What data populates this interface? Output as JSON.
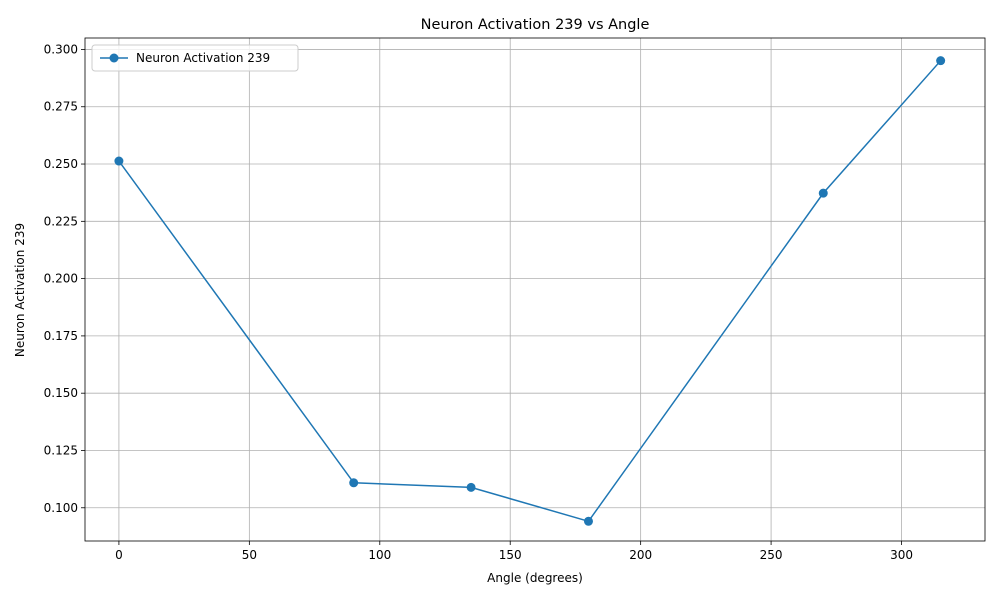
{
  "chart_data": {
    "type": "line",
    "title": "Neuron Activation 239 vs Angle",
    "xlabel": "Angle (degrees)",
    "ylabel": "Neuron Activation 239",
    "xlim": [
      -13,
      332
    ],
    "ylim": [
      0.0855,
      0.305
    ],
    "xticks": [
      0,
      50,
      100,
      150,
      200,
      250,
      300
    ],
    "xtick_labels": [
      "0",
      "50",
      "100",
      "150",
      "200",
      "250",
      "300"
    ],
    "yticks": [
      0.1,
      0.125,
      0.15,
      0.175,
      0.2,
      0.225,
      0.25,
      0.275,
      0.3
    ],
    "ytick_labels": [
      "0.100",
      "0.125",
      "0.150",
      "0.175",
      "0.200",
      "0.225",
      "0.250",
      "0.275",
      "0.300"
    ],
    "grid": true,
    "legend_position": "upper-left",
    "series": [
      {
        "name": "Neuron Activation 239",
        "color": "#1f77b4",
        "marker": "circle",
        "x": [
          0,
          90,
          135,
          180,
          270,
          315
        ],
        "y": [
          0.2513,
          0.1109,
          0.1089,
          0.0941,
          0.2373,
          0.2951
        ]
      }
    ]
  }
}
